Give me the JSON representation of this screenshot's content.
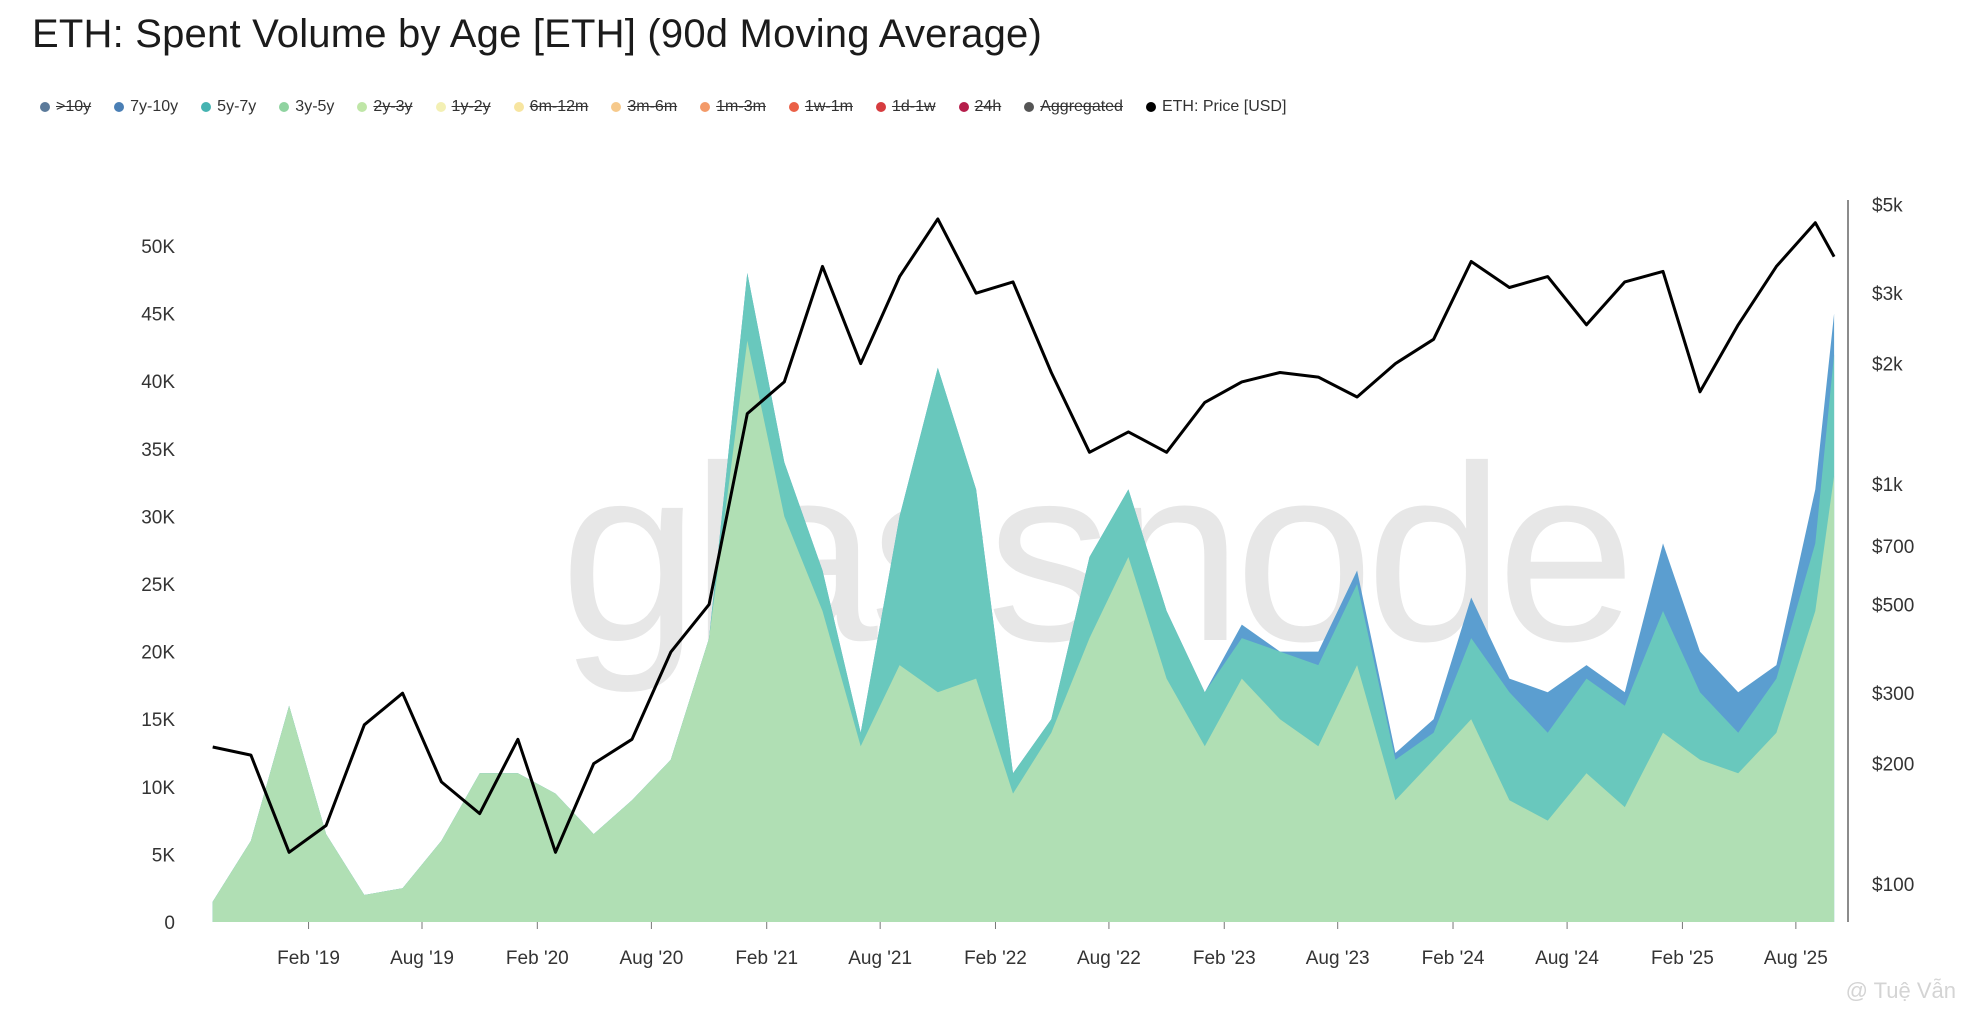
{
  "title": "ETH: Spent Volume by Age [ETH] (90d Moving Average)",
  "legend": [
    {
      "label": ">10y",
      "color": "#5b7a9a",
      "visible": false
    },
    {
      "label": "7y-10y",
      "color": "#4a7fb5",
      "visible": true
    },
    {
      "label": "5y-7y",
      "color": "#45b3b1",
      "visible": true
    },
    {
      "label": "3y-5y",
      "color": "#8fd3a0",
      "visible": true
    },
    {
      "label": "2y-3y",
      "color": "#bfe6a7",
      "visible": false
    },
    {
      "label": "1y-2y",
      "color": "#f3f0b4",
      "visible": false
    },
    {
      "label": "6m-12m",
      "color": "#f7e5a0",
      "visible": false
    },
    {
      "label": "3m-6m",
      "color": "#f6c98b",
      "visible": false
    },
    {
      "label": "1m-3m",
      "color": "#f39a69",
      "visible": false
    },
    {
      "label": "1w-1m",
      "color": "#ea6047",
      "visible": false
    },
    {
      "label": "1d-1w",
      "color": "#d63c3f",
      "visible": false
    },
    {
      "label": "24h",
      "color": "#b51d4a",
      "visible": false
    },
    {
      "label": "Aggregated",
      "color": "#555555",
      "visible": false
    },
    {
      "label": "ETH: Price [USD]",
      "color": "#000000",
      "visible": true
    }
  ],
  "watermark": "glassnode",
  "credit": "@ Tuệ Vẫn",
  "chart_data": {
    "type": "area",
    "x_ticks": [
      "Feb '19",
      "Aug '19",
      "Feb '20",
      "Aug '20",
      "Feb '21",
      "Aug '21",
      "Feb '22",
      "Aug '22",
      "Feb '23",
      "Aug '23",
      "Feb '24",
      "Aug '24",
      "Feb '25",
      "Aug '25"
    ],
    "y_left_ticks": [
      "0",
      "5K",
      "10K",
      "15K",
      "20K",
      "25K",
      "30K",
      "35K",
      "40K",
      "45K",
      "50K"
    ],
    "y_left_range": [
      0,
      50000
    ],
    "y_right_ticks": [
      "$100",
      "$200",
      "$300",
      "$500",
      "$700",
      "$1k",
      "$2k",
      "$3k",
      "$5k"
    ],
    "y_right_values": [
      100,
      200,
      300,
      500,
      700,
      1000,
      2000,
      3000,
      5000
    ],
    "y_right_scale": "log",
    "x": [
      "2018-09",
      "2018-11",
      "2019-01",
      "2019-03",
      "2019-05",
      "2019-07",
      "2019-09",
      "2019-11",
      "2020-01",
      "2020-03",
      "2020-05",
      "2020-07",
      "2020-09",
      "2020-11",
      "2021-01",
      "2021-03",
      "2021-05",
      "2021-07",
      "2021-09",
      "2021-11",
      "2022-01",
      "2022-03",
      "2022-05",
      "2022-07",
      "2022-09",
      "2022-11",
      "2023-01",
      "2023-03",
      "2023-05",
      "2023-07",
      "2023-09",
      "2023-11",
      "2024-01",
      "2024-03",
      "2024-05",
      "2024-07",
      "2024-09",
      "2024-11",
      "2025-01",
      "2025-03",
      "2025-05",
      "2025-07",
      "2025-09",
      "2025-10"
    ],
    "series": [
      {
        "name": "3y-5y",
        "color": "#b0dfb4",
        "values": [
          1500,
          6000,
          16000,
          6500,
          2000,
          2500,
          6000,
          11000,
          11000,
          9500,
          6500,
          9000,
          12000,
          21000,
          43000,
          30000,
          23000,
          13000,
          19000,
          17000,
          18000,
          9500,
          14000,
          21000,
          27000,
          18000,
          13000,
          18000,
          15000,
          13000,
          19000,
          9000,
          12000,
          15000,
          9000,
          7500,
          11000,
          8500,
          14000,
          12000,
          11000,
          14000,
          23000,
          33000
        ]
      },
      {
        "name": "5y-7y",
        "color": "#69c8bd",
        "values": [
          1500,
          6000,
          16000,
          6500,
          2000,
          2500,
          6000,
          11000,
          11000,
          9500,
          6500,
          9000,
          12000,
          21000,
          48000,
          34000,
          26000,
          14000,
          30000,
          41000,
          32000,
          11000,
          15000,
          27000,
          32000,
          23000,
          17000,
          21000,
          20000,
          19000,
          25000,
          12000,
          14000,
          21000,
          17000,
          14000,
          18000,
          16000,
          23000,
          17000,
          14000,
          18000,
          28000,
          42000
        ]
      },
      {
        "name": "7y-10y",
        "color": "#5b9ed0",
        "values": [
          1500,
          6000,
          16000,
          6500,
          2000,
          2500,
          6000,
          11000,
          11000,
          9500,
          6500,
          9000,
          12000,
          21000,
          48000,
          34000,
          26000,
          14000,
          30000,
          41000,
          32000,
          11000,
          15000,
          27000,
          32000,
          23000,
          17000,
          22000,
          20000,
          20000,
          26000,
          12500,
          15000,
          24000,
          18000,
          17000,
          19000,
          17000,
          28000,
          20000,
          17000,
          19000,
          32000,
          45000
        ]
      }
    ],
    "price": {
      "name": "ETH: Price [USD]",
      "color": "#000000",
      "values": [
        220,
        210,
        120,
        140,
        250,
        300,
        180,
        150,
        230,
        120,
        200,
        230,
        380,
        500,
        1500,
        1800,
        3500,
        2000,
        3300,
        4600,
        3000,
        3200,
        1900,
        1200,
        1350,
        1200,
        1600,
        1800,
        1900,
        1850,
        1650,
        2000,
        2300,
        3600,
        3100,
        3300,
        2500,
        3200,
        3400,
        1700,
        2500,
        3500,
        4500,
        3700
      ]
    }
  }
}
